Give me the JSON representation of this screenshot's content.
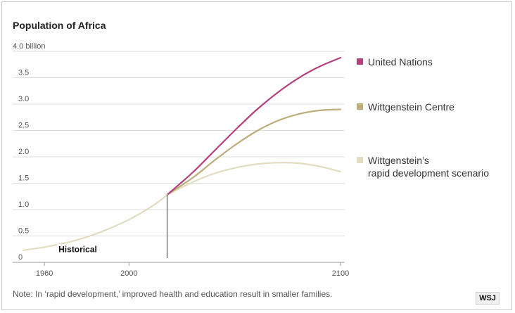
{
  "chart_data": {
    "type": "line",
    "title": "Population of Africa",
    "unit_label": "4.0 billion",
    "xlabel": "",
    "ylabel": "",
    "xlim": [
      1950,
      2100
    ],
    "ylim": [
      0,
      4.0
    ],
    "x_ticks": [
      {
        "value": 1960,
        "label": "1960"
      },
      {
        "value": 2000,
        "label": "2000"
      },
      {
        "value": 2100,
        "label": "2100"
      }
    ],
    "y_ticks": [
      {
        "value": 0,
        "label": "0"
      },
      {
        "value": 0.5,
        "label": "0.5"
      },
      {
        "value": 1.0,
        "label": "1.0"
      },
      {
        "value": 1.5,
        "label": "1.5"
      },
      {
        "value": 2.0,
        "label": "2.0"
      },
      {
        "value": 2.5,
        "label": "2.5"
      },
      {
        "value": 3.0,
        "label": "3.0"
      },
      {
        "value": 3.5,
        "label": "3.5"
      }
    ],
    "grid": "horizontal",
    "legend_position": "right",
    "series": [
      {
        "name": "Historical",
        "color": "#e2dcc0",
        "points": [
          [
            1950,
            0.23
          ],
          [
            1960,
            0.29
          ],
          [
            1970,
            0.37
          ],
          [
            1980,
            0.48
          ],
          [
            1990,
            0.63
          ],
          [
            2000,
            0.81
          ],
          [
            2010,
            1.04
          ],
          [
            2015,
            1.18
          ],
          [
            2018,
            1.28
          ]
        ]
      },
      {
        "name": "United Nations",
        "color": "#b5417c",
        "points": [
          [
            2018,
            1.28
          ],
          [
            2030,
            1.7
          ],
          [
            2040,
            2.1
          ],
          [
            2050,
            2.5
          ],
          [
            2060,
            2.88
          ],
          [
            2070,
            3.21
          ],
          [
            2080,
            3.49
          ],
          [
            2090,
            3.71
          ],
          [
            2100,
            3.88
          ]
        ]
      },
      {
        "name": "Wittgenstein Centre",
        "color": "#bcad7b",
        "points": [
          [
            2018,
            1.28
          ],
          [
            2030,
            1.6
          ],
          [
            2040,
            1.92
          ],
          [
            2050,
            2.22
          ],
          [
            2060,
            2.48
          ],
          [
            2070,
            2.68
          ],
          [
            2080,
            2.81
          ],
          [
            2090,
            2.88
          ],
          [
            2100,
            2.9
          ]
        ]
      },
      {
        "name": "Wittgenstein’s\nrapid development scenario",
        "color": "#e2dcc0",
        "points": [
          [
            2018,
            1.28
          ],
          [
            2030,
            1.52
          ],
          [
            2040,
            1.68
          ],
          [
            2050,
            1.79
          ],
          [
            2060,
            1.86
          ],
          [
            2070,
            1.89
          ],
          [
            2080,
            1.88
          ],
          [
            2090,
            1.82
          ],
          [
            2100,
            1.72
          ]
        ]
      }
    ],
    "annotations": [
      {
        "text": "Historical",
        "x": 1968,
        "y": 0.37
      },
      {
        "type": "vline",
        "x": 2018,
        "from": 0,
        "to": 1.28
      }
    ]
  },
  "legend": [
    {
      "name": "United Nations",
      "color": "#b5417c"
    },
    {
      "name": "Wittgenstein Centre",
      "color": "#bcad7b"
    },
    {
      "name": "Wittgenstein’s",
      "line2": "rapid development scenario",
      "color": "#e2dcc0"
    }
  ],
  "note": "Note: In ‘rapid development,’ improved health and education result in smaller families.",
  "brand": "WSJ"
}
